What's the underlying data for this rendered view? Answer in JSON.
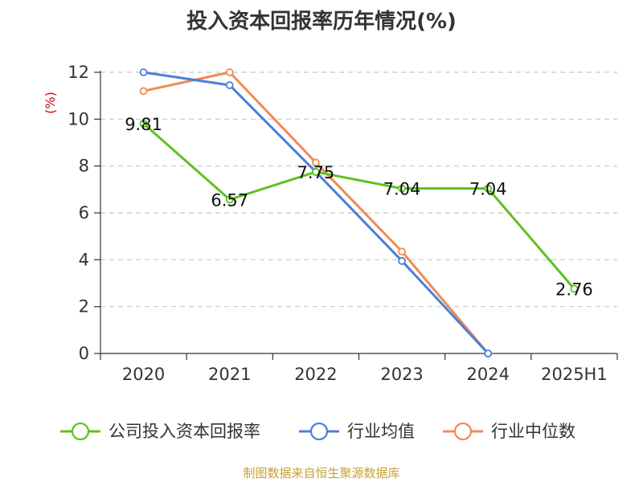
{
  "chart_data": {
    "type": "line",
    "title": "投入资本回报率历年情况(%)",
    "ylabel": "(%)",
    "categories": [
      "2020",
      "2021",
      "2022",
      "2023",
      "2024",
      "2025H1"
    ],
    "ylim": [
      0,
      12
    ],
    "yticks": [
      0,
      2,
      4,
      6,
      8,
      10,
      12
    ],
    "grid": true,
    "legend_position": "bottom",
    "series": [
      {
        "name": "公司投入资本回报率",
        "color": "#5cc21c",
        "values": [
          9.81,
          6.57,
          7.75,
          7.04,
          7.04,
          2.76
        ],
        "labels": [
          "9.81",
          "6.57",
          "7.75",
          "7.04",
          "7.04",
          "2.76"
        ]
      },
      {
        "name": "行业均值",
        "color": "#4a7fd9",
        "values": [
          12.0,
          11.45,
          7.75,
          3.95,
          0,
          null
        ]
      },
      {
        "name": "行业中位数",
        "color": "#f28a55",
        "values": [
          11.2,
          12.0,
          8.15,
          4.35,
          0,
          null
        ]
      }
    ]
  },
  "source": "制图数据来自恒生聚源数据库"
}
